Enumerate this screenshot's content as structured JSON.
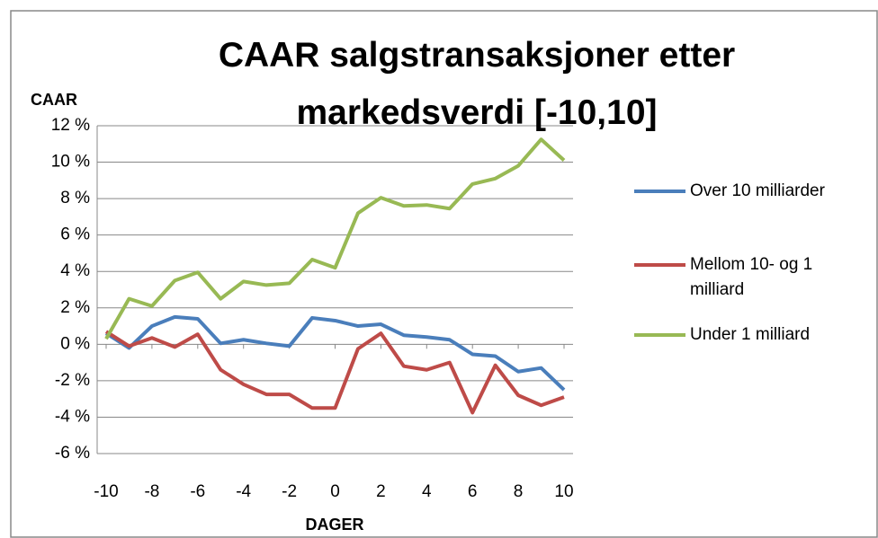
{
  "chart_data": {
    "type": "line",
    "title": "CAAR salgstransaksjoner etter markedsverdi [-10,10]",
    "y_label": "CAAR",
    "x_label": "DAGER",
    "x": [
      -10,
      -9,
      -8,
      -7,
      -6,
      -5,
      -4,
      -3,
      -2,
      -1,
      0,
      1,
      2,
      3,
      4,
      5,
      6,
      7,
      8,
      9,
      10
    ],
    "xlim": [
      -10,
      10
    ],
    "xticks": [
      -10,
      -8,
      -6,
      -4,
      -2,
      0,
      2,
      4,
      6,
      8,
      10
    ],
    "ylim": [
      -6,
      12
    ],
    "yticks": [
      {
        "value": -6,
        "label": "-6 %"
      },
      {
        "value": -4,
        "label": "-4 %"
      },
      {
        "value": -2,
        "label": "-2 %"
      },
      {
        "value": 0,
        "label": "0 %"
      },
      {
        "value": 2,
        "label": "2 %"
      },
      {
        "value": 4,
        "label": "4 %"
      },
      {
        "value": 6,
        "label": "6 %"
      },
      {
        "value": 8,
        "label": "8 %"
      },
      {
        "value": 10,
        "label": "10 %"
      },
      {
        "value": 12,
        "label": "12 %"
      }
    ],
    "grid": true,
    "legend": "right",
    "series": [
      {
        "name": "Over 10 milliarder",
        "color": "#4a7ebb",
        "values": [
          0.6,
          -0.2,
          1.0,
          1.5,
          1.4,
          0.05,
          0.25,
          0.05,
          -0.1,
          1.45,
          1.3,
          1.0,
          1.1,
          0.5,
          0.4,
          0.25,
          -0.55,
          -0.65,
          -1.5,
          -1.3,
          -2.5
        ]
      },
      {
        "name": "Mellom 10- og 1 milliard",
        "color": "#be4b48",
        "values": [
          0.7,
          -0.1,
          0.35,
          -0.15,
          0.55,
          -1.4,
          -2.2,
          -2.75,
          -2.75,
          -3.5,
          -3.5,
          -0.25,
          0.6,
          -1.2,
          -1.4,
          -1.0,
          -3.75,
          -1.15,
          -2.8,
          -3.35,
          -2.9
        ]
      },
      {
        "name": "Under 1 milliard",
        "color": "#98b954",
        "values": [
          0.3,
          2.5,
          2.1,
          3.5,
          3.95,
          2.5,
          3.45,
          3.25,
          3.35,
          4.65,
          4.2,
          7.2,
          8.05,
          7.6,
          7.65,
          7.45,
          8.8,
          9.1,
          9.8,
          11.25,
          10.1
        ]
      }
    ]
  }
}
